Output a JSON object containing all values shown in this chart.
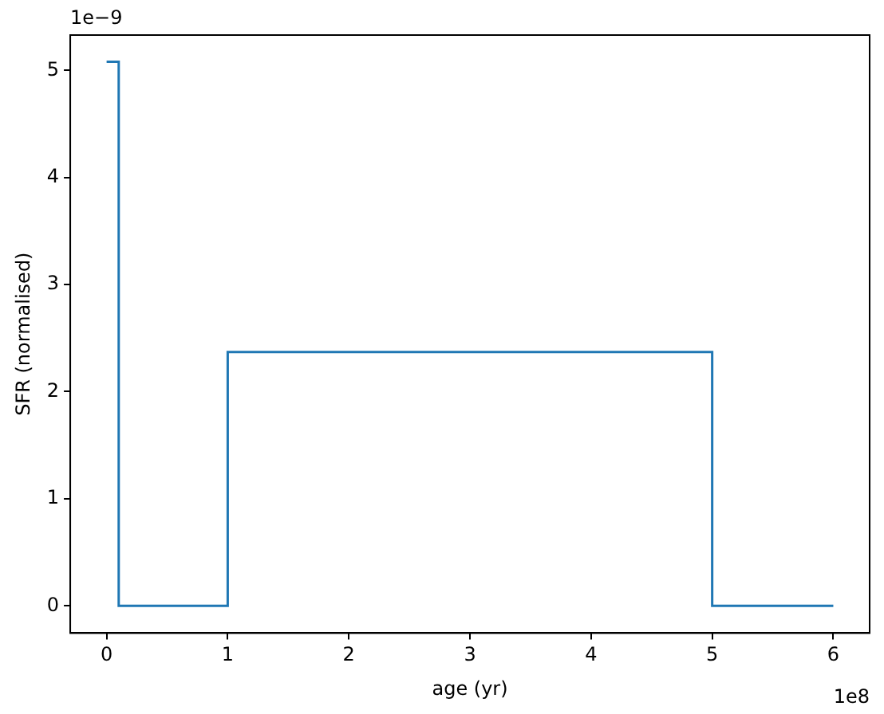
{
  "chart_data": {
    "type": "step",
    "xlabel": "age (yr)",
    "ylabel": "SFR (normalised)",
    "x": [
      0,
      0.1,
      1,
      5,
      6
    ],
    "series": [
      {
        "color": "#1f77b4",
        "values": [
          5.08,
          0,
          2.37,
          0,
          0
        ]
      }
    ],
    "xlim": [
      -0.3,
      6.3
    ],
    "xticks": [
      0,
      1,
      2,
      3,
      4,
      5,
      6
    ],
    "ylim": [
      -0.254,
      5.33
    ],
    "yticks": [
      0,
      1,
      2,
      3,
      4,
      5
    ],
    "annotations": [
      "1e8",
      "1e−9"
    ],
    "grid": false,
    "legend": false,
    "marker": "none",
    "line_style": "solid"
  }
}
